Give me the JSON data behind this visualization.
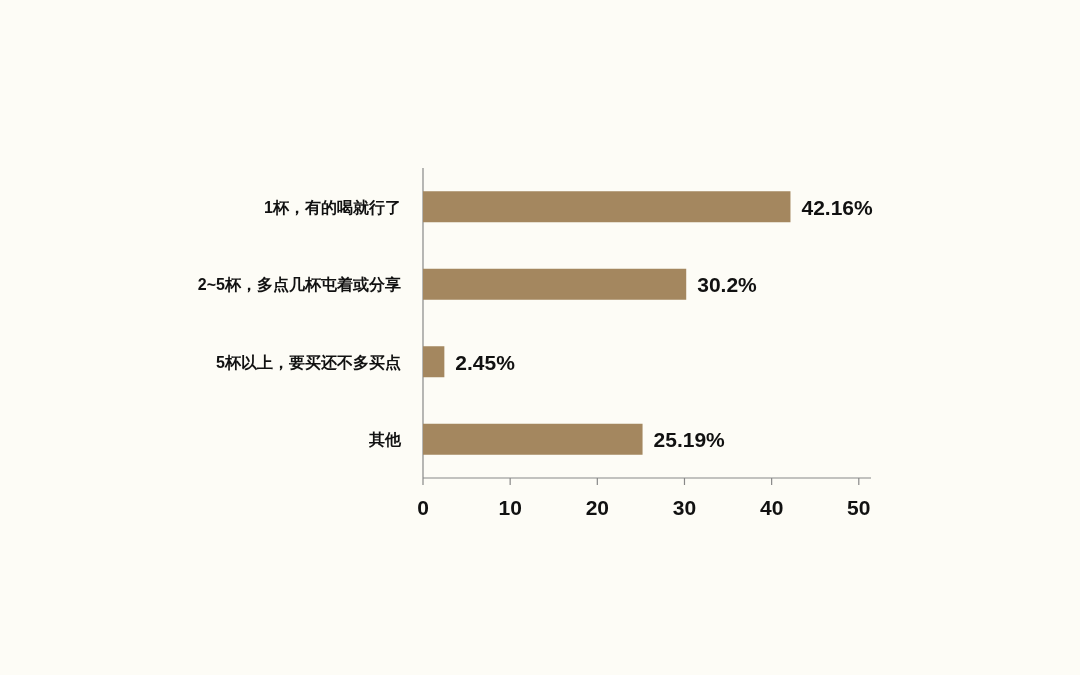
{
  "chart_data": {
    "type": "bar",
    "orientation": "horizontal",
    "categories": [
      "1杯，有的喝就行了",
      "2~5杯，多点几杯屯着或分享",
      "5杯以上，要买还不多买点",
      "其他"
    ],
    "values": [
      42.16,
      30.2,
      2.45,
      25.19
    ],
    "value_labels": [
      "42.16%",
      "30.2%",
      "2.45%",
      "25.19%"
    ],
    "color": "#a4875f",
    "xlim": [
      0,
      51.4
    ],
    "xticks": [
      0,
      10,
      20,
      30,
      40,
      50
    ]
  }
}
